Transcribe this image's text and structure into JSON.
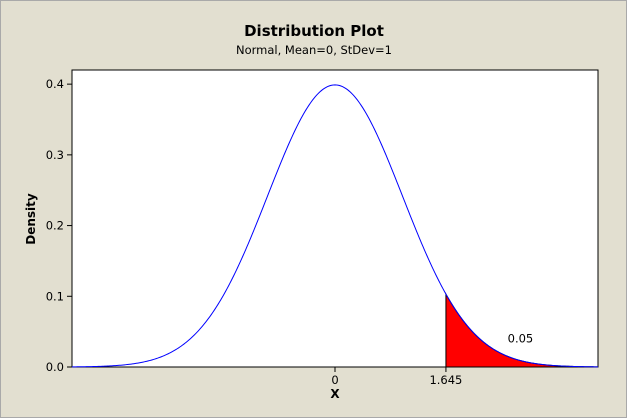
{
  "chart_data": {
    "type": "area",
    "title": "Distribution Plot",
    "subtitle": "Normal, Mean=0, StDev=1",
    "xlabel": "X",
    "ylabel": "Density",
    "distribution": {
      "name": "Normal",
      "mean": 0,
      "stdev": 1
    },
    "xlim": [
      -3.9,
      3.9
    ],
    "ylim": [
      0,
      0.42
    ],
    "x_ticks": [
      {
        "value": 0,
        "label": "0"
      },
      {
        "value": 1.645,
        "label": "1.645"
      }
    ],
    "y_ticks": [
      {
        "value": 0.0,
        "label": "0.0"
      },
      {
        "value": 0.1,
        "label": "0.1"
      },
      {
        "value": 0.2,
        "label": "0.2"
      },
      {
        "value": 0.3,
        "label": "0.3"
      },
      {
        "value": 0.4,
        "label": "0.4"
      }
    ],
    "shaded_region": {
      "from": 1.645,
      "to": 3.9,
      "area_label": "0.05",
      "label_x": 2.75,
      "label_y": 0.035
    },
    "curve_color": "#0000ff",
    "fill_color": "#ff0000",
    "grid": false,
    "legend": "none"
  }
}
